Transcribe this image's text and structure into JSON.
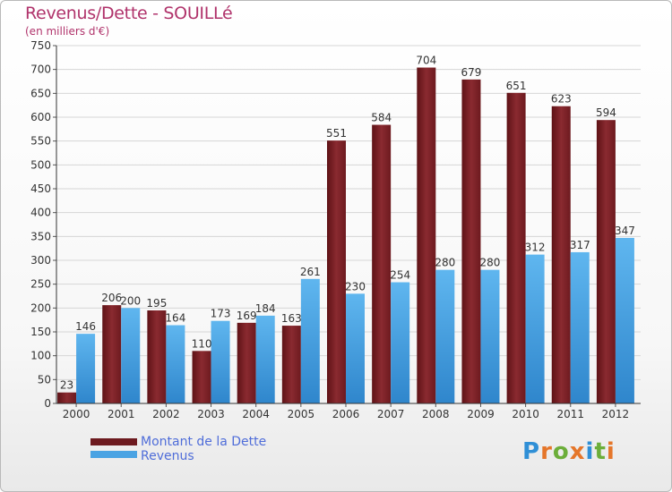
{
  "title": "Revenus/Dette - SOUILLé",
  "subtitle": "(en milliers d'€)",
  "legend": {
    "debt": "Montant de la Dette",
    "revenue": "Revenus"
  },
  "logo": {
    "letters": [
      "P",
      "r",
      "o",
      "x",
      "i",
      "t",
      "i"
    ],
    "colors": [
      "#2f8fd6",
      "#e5762a",
      "#6cae3a",
      "#e5762a",
      "#2f8fd6",
      "#6cae3a",
      "#e5762a"
    ]
  },
  "colors": {
    "debt": "#7a1f24",
    "revenue": "#4aa3e3",
    "title": "#b0336b"
  },
  "chart_data": {
    "type": "bar",
    "title": "Revenus/Dette - SOUILLé",
    "ylabel": "(en milliers d'€)",
    "xlabel": "",
    "categories": [
      "2000",
      "2001",
      "2002",
      "2003",
      "2004",
      "2005",
      "2006",
      "2007",
      "2008",
      "2009",
      "2010",
      "2011",
      "2012"
    ],
    "series": [
      {
        "name": "Montant de la Dette",
        "values": [
          23,
          206,
          195,
          110,
          169,
          163,
          551,
          584,
          704,
          679,
          651,
          623,
          594
        ]
      },
      {
        "name": "Revenus",
        "values": [
          146,
          200,
          164,
          173,
          184,
          261,
          230,
          254,
          280,
          280,
          312,
          317,
          347
        ]
      }
    ],
    "ylim": [
      0,
      750
    ],
    "yticks": [
      0,
      50,
      100,
      150,
      200,
      250,
      300,
      350,
      400,
      450,
      500,
      550,
      600,
      650,
      700,
      750
    ],
    "grid": true,
    "legend": "bottom-left"
  }
}
